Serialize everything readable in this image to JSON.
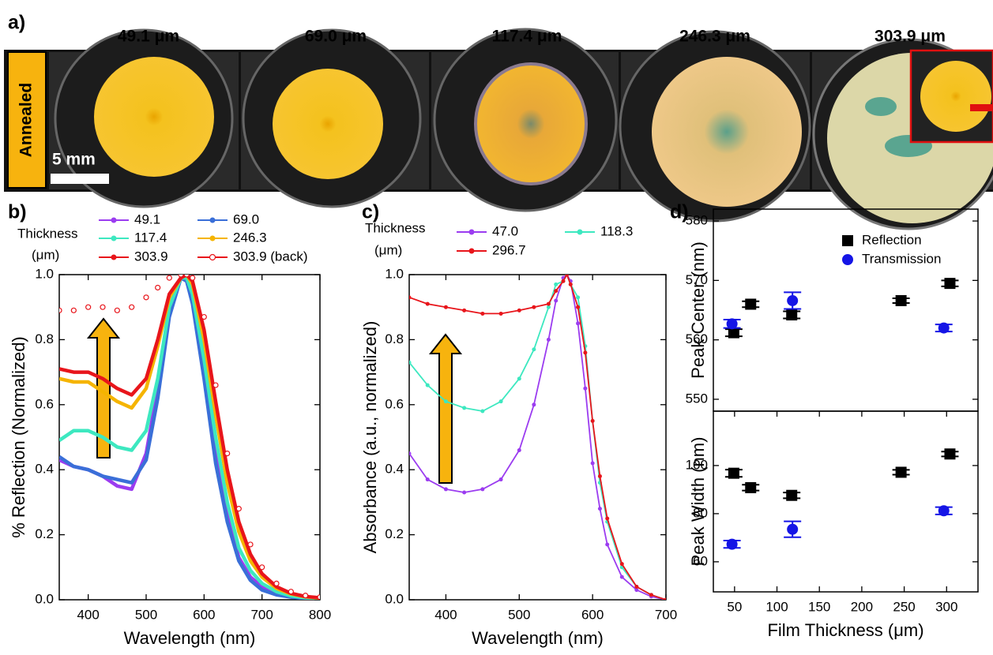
{
  "panel_a": {
    "panel_label": "a)",
    "row_label": "Annealed",
    "scale_bar": "5 mm",
    "samples": [
      "49.1 μm",
      "69.0 μm",
      "117.4 μm",
      "246.3 μm",
      "303.9 μm"
    ]
  },
  "chart_data": [
    {
      "type": "line",
      "panel_label": "b)",
      "x_label": "Wavelength (nm)",
      "y_label": "% Reflection (Normalized)",
      "legend_title": [
        "Thickness",
        "(μm)"
      ],
      "x": [
        350,
        375,
        400,
        425,
        450,
        475,
        500,
        520,
        540,
        560,
        570,
        580,
        600,
        620,
        640,
        660,
        680,
        700,
        725,
        750,
        775,
        800
      ],
      "series": [
        {
          "name": "49.1",
          "color": "#9b3cf0",
          "marker": "none",
          "values": [
            0.43,
            0.41,
            0.4,
            0.38,
            0.35,
            0.34,
            0.45,
            0.65,
            0.88,
            0.99,
            0.98,
            0.92,
            0.7,
            0.45,
            0.26,
            0.13,
            0.07,
            0.04,
            0.02,
            0.01,
            0.005,
            0.003
          ]
        },
        {
          "name": "69.0",
          "color": "#3a6fd8",
          "marker": "none",
          "values": [
            0.44,
            0.41,
            0.4,
            0.38,
            0.37,
            0.36,
            0.43,
            0.62,
            0.87,
            0.99,
            0.98,
            0.91,
            0.68,
            0.42,
            0.24,
            0.12,
            0.06,
            0.03,
            0.015,
            0.008,
            0.004,
            0.002
          ]
        },
        {
          "name": "117.4",
          "color": "#3de8c0",
          "marker": "none",
          "values": [
            0.49,
            0.52,
            0.52,
            0.5,
            0.47,
            0.46,
            0.52,
            0.68,
            0.9,
            0.99,
            0.99,
            0.94,
            0.74,
            0.5,
            0.3,
            0.16,
            0.09,
            0.05,
            0.025,
            0.012,
            0.006,
            0.004
          ]
        },
        {
          "name": "246.3",
          "color": "#f5b400",
          "marker": "none",
          "values": [
            0.68,
            0.67,
            0.67,
            0.64,
            0.61,
            0.59,
            0.65,
            0.78,
            0.93,
            0.99,
            1.0,
            0.97,
            0.8,
            0.57,
            0.36,
            0.21,
            0.12,
            0.07,
            0.035,
            0.018,
            0.009,
            0.005
          ]
        },
        {
          "name": "303.9",
          "color": "#e8151b",
          "marker": "none",
          "values": [
            0.71,
            0.7,
            0.7,
            0.68,
            0.65,
            0.63,
            0.68,
            0.8,
            0.94,
            0.99,
            1.0,
            0.98,
            0.83,
            0.61,
            0.4,
            0.24,
            0.14,
            0.08,
            0.04,
            0.02,
            0.01,
            0.006
          ]
        },
        {
          "name": "303.9 (back)",
          "color": "#e8151b",
          "marker": "open-circle",
          "values": [
            0.89,
            0.89,
            0.9,
            0.9,
            0.89,
            0.9,
            0.93,
            0.96,
            0.99,
            1.0,
            1.0,
            0.99,
            0.87,
            0.66,
            0.45,
            0.28,
            0.17,
            0.1,
            0.05,
            0.025,
            0.013,
            0.008
          ]
        }
      ],
      "xlim": [
        350,
        800
      ],
      "xticks": [
        400,
        500,
        600,
        700,
        800
      ],
      "ylim": [
        0,
        1
      ],
      "yticks": [
        {
          "value": 0,
          "label": "0.0"
        },
        0.2,
        0.4,
        0.6,
        0.8,
        {
          "value": 1,
          "label": "1.0"
        }
      ]
    },
    {
      "type": "line",
      "panel_label": "c)",
      "x_label": "Wavelength (nm)",
      "y_label": "Absorbance (a.u., normalized)",
      "legend_title": [
        "Thickness",
        "(μm)"
      ],
      "x": [
        350,
        375,
        400,
        425,
        450,
        475,
        500,
        520,
        540,
        550,
        560,
        565,
        570,
        580,
        590,
        600,
        610,
        620,
        640,
        660,
        680,
        700
      ],
      "series": [
        {
          "name": "47.0",
          "color": "#9b3cf0",
          "marker": "dot",
          "values": [
            0.45,
            0.37,
            0.34,
            0.33,
            0.34,
            0.37,
            0.46,
            0.6,
            0.8,
            0.92,
            0.99,
            1.0,
            0.98,
            0.85,
            0.65,
            0.42,
            0.28,
            0.17,
            0.07,
            0.03,
            0.01,
            0.0
          ]
        },
        {
          "name": "118.3",
          "color": "#3de8c0",
          "marker": "dot",
          "values": [
            0.73,
            0.66,
            0.61,
            0.59,
            0.58,
            0.61,
            0.68,
            0.77,
            0.9,
            0.97,
            0.98,
            1.0,
            0.97,
            0.93,
            0.78,
            0.55,
            0.36,
            0.24,
            0.1,
            0.04,
            0.015,
            0.0
          ]
        },
        {
          "name": "296.7",
          "color": "#e8151b",
          "marker": "dot",
          "values": [
            0.93,
            0.91,
            0.9,
            0.89,
            0.88,
            0.88,
            0.89,
            0.9,
            0.91,
            0.95,
            0.98,
            1.0,
            0.97,
            0.9,
            0.76,
            0.55,
            0.38,
            0.25,
            0.11,
            0.04,
            0.015,
            0.0
          ]
        }
      ],
      "xlim": [
        350,
        700
      ],
      "xticks": [
        400,
        500,
        600,
        700
      ],
      "ylim": [
        0,
        1
      ],
      "yticks": [
        {
          "value": 0,
          "label": "0.0"
        },
        0.2,
        0.4,
        0.6,
        0.8,
        {
          "value": 1,
          "label": "1.0"
        }
      ]
    },
    {
      "type": "scatter",
      "panel_label": "d)",
      "y_label": "Peak Center (nm)",
      "legend": "upper right",
      "series": [
        {
          "name": "Reflection",
          "color": "#000000",
          "marker": "square",
          "x": [
            49.1,
            69.0,
            117.4,
            246.3,
            303.9
          ],
          "values": [
            561.2,
            566.0,
            564.2,
            566.6,
            569.5
          ],
          "errors": [
            0.6,
            0.5,
            0.6,
            0.4,
            0.5
          ]
        },
        {
          "name": "Transmission",
          "color": "#1515e6",
          "marker": "circle",
          "x": [
            47.0,
            118.3,
            296.7
          ],
          "values": [
            562.7,
            566.6,
            562.0
          ],
          "errors": [
            0.7,
            1.4,
            0.6
          ]
        }
      ],
      "xlim": [
        25,
        337
      ],
      "ylim": [
        548,
        582
      ],
      "yticks": [
        550,
        560,
        570,
        580
      ]
    },
    {
      "type": "scatter",
      "x_label": "Film Thickness (μm)",
      "y_label": "Peak Width (nm)",
      "series": [
        {
          "color": "#000000",
          "marker": "square",
          "x": [
            49.1,
            69.0,
            117.4,
            246.3,
            303.9
          ],
          "values": [
            96.8,
            90.8,
            87.6,
            97.2,
            104.8
          ],
          "errors": [
            1.5,
            1.2,
            1.2,
            1.0,
            1.0
          ]
        },
        {
          "color": "#1515e6",
          "marker": "circle",
          "x": [
            47.0,
            118.3,
            296.7
          ],
          "values": [
            67.3,
            73.5,
            81.2
          ],
          "errors": [
            1.5,
            3.3,
            1.5
          ]
        }
      ],
      "xlim": [
        25,
        337
      ],
      "xticks": [
        50,
        100,
        150,
        200,
        250,
        300
      ],
      "ylim": [
        47.5,
        122.6
      ],
      "yticks": [
        60,
        80,
        100
      ]
    }
  ]
}
